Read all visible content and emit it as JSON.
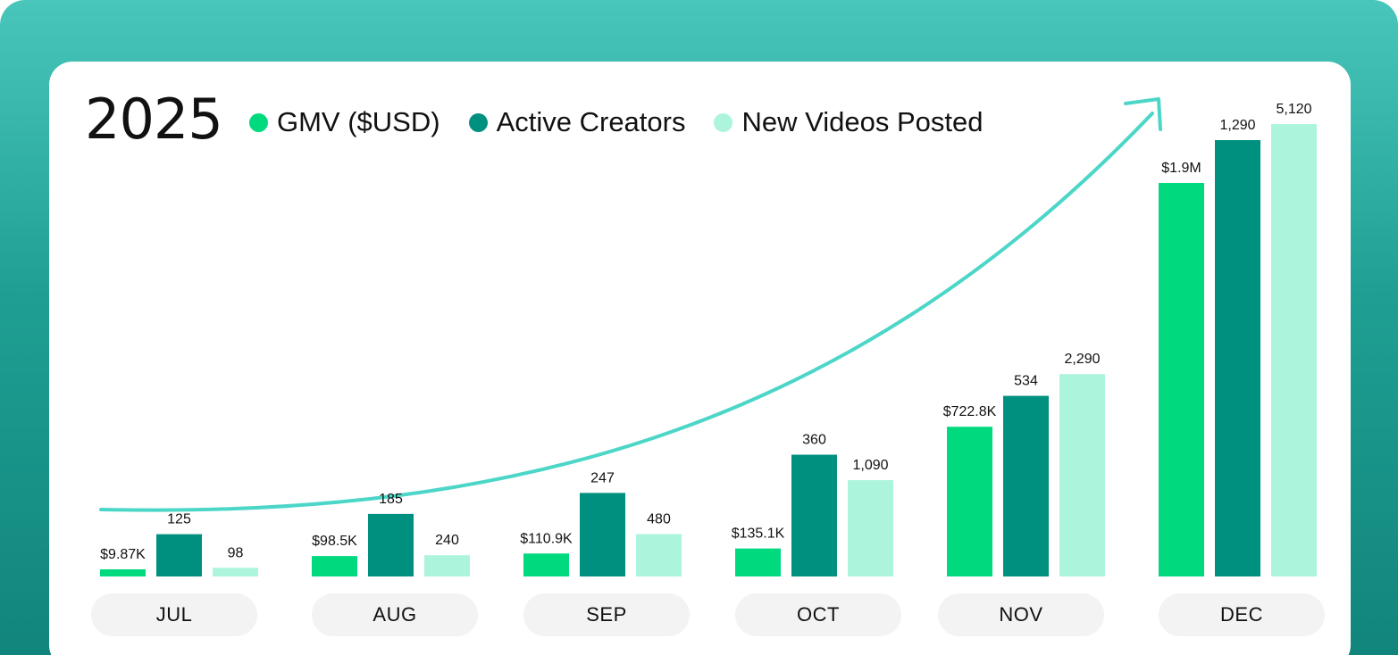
{
  "year_label": "2025",
  "colors": {
    "gmv": "#00d97e",
    "creators": "#009080",
    "videos": "#adf4dc",
    "trend_arrow": "#4cd6c8"
  },
  "legend": [
    {
      "label": "GMV ($USD)",
      "color": "#00d97e"
    },
    {
      "label": "Active Creators",
      "color": "#009080"
    },
    {
      "label": "New Videos Posted",
      "color": "#adf4dc"
    }
  ],
  "months": [
    "JUL",
    "AUG",
    "SEP",
    "OCT",
    "NOV",
    "DEC"
  ],
  "chart_data": {
    "type": "bar",
    "title": "2025",
    "categories": [
      "JUL",
      "AUG",
      "SEP",
      "OCT",
      "NOV",
      "DEC"
    ],
    "series": [
      {
        "name": "GMV ($USD)",
        "values": [
          9870,
          98500,
          110900,
          135100,
          722800,
          1900000
        ],
        "labels": [
          "$9.87K",
          "$98.5K",
          "$110.9K",
          "$135.1K",
          "$722.8K",
          "$1.9M"
        ]
      },
      {
        "name": "Active Creators",
        "values": [
          125,
          185,
          247,
          360,
          534,
          1290
        ],
        "labels": [
          "125",
          "185",
          "247",
          "360",
          "534",
          "1,290"
        ]
      },
      {
        "name": "New Videos Posted",
        "values": [
          98,
          240,
          480,
          1090,
          2290,
          5120
        ],
        "labels": [
          "98",
          "240",
          "480",
          "1,090",
          "2,290",
          "5,120"
        ]
      }
    ],
    "legend_position": "top",
    "grid": false,
    "annotation": "upward trend arrow"
  }
}
